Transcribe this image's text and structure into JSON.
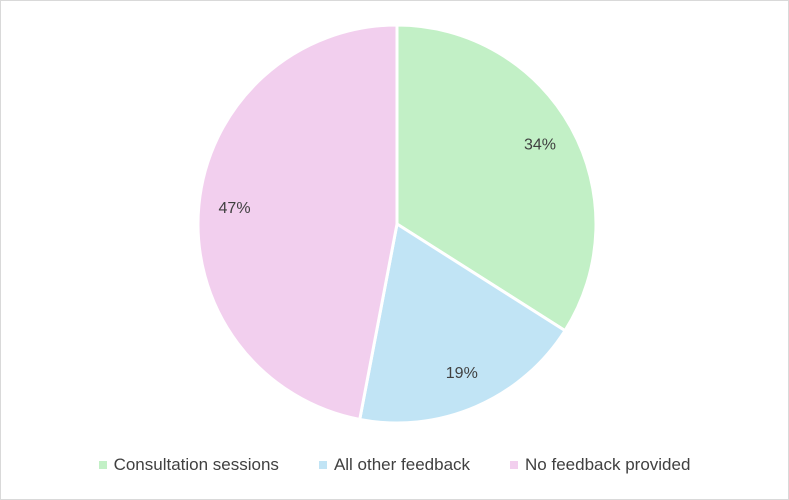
{
  "chart_data": {
    "type": "pie",
    "title": "",
    "categories": [
      "Consultation sessions",
      "All other feedback",
      "No feedback provided"
    ],
    "values": [
      34,
      19,
      47
    ],
    "data_labels": [
      "34%",
      "19%",
      "47%"
    ],
    "colors": [
      "#c2f0c6",
      "#c1e4f5",
      "#f2cfee"
    ],
    "start_angle_deg": 0,
    "direction": "clockwise",
    "legend_position": "bottom"
  }
}
